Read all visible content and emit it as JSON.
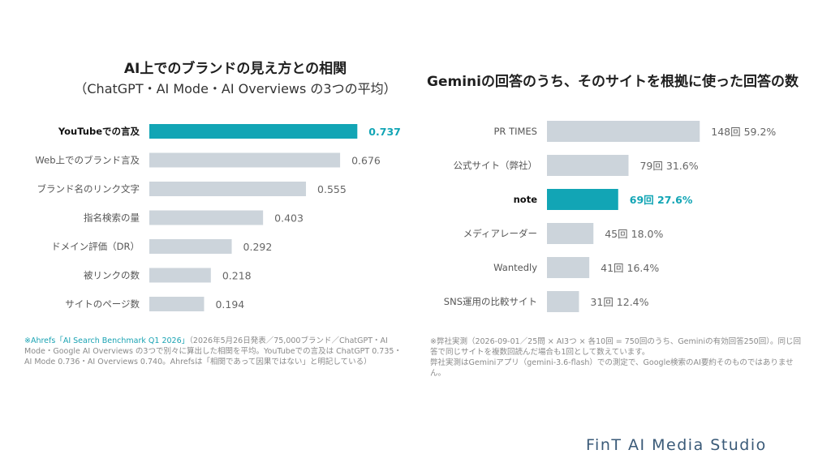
{
  "chart_data": [
    {
      "type": "bar",
      "orientation": "horizontal",
      "title": "AI上でのブランドの見え方との相関",
      "subtitle": "（ChatGPT・AI Mode・AI Overviews の3つの平均）",
      "categories": [
        "YouTubeでの言及",
        "Web上でのブランド言及",
        "ブランド名のリンク文字",
        "指名検索の量",
        "ドメイン評価（DR）",
        "被リンクの数",
        "サイトのページ数"
      ],
      "values": [
        0.737,
        0.676,
        0.555,
        0.403,
        0.292,
        0.218,
        0.194
      ],
      "value_labels": [
        "0.737",
        "0.676",
        "0.555",
        "0.403",
        "0.292",
        "0.218",
        "0.194"
      ],
      "highlight_index": 0,
      "xlim": [
        0,
        0.9
      ]
    },
    {
      "type": "bar",
      "orientation": "horizontal",
      "title": "Geminiの回答のうち、そのサイトを根拠に使った回答の数",
      "categories": [
        "PR TIMES",
        "公式サイト（弊社）",
        "note",
        "メディアレーダー",
        "Wantedly",
        "SNS運用の比較サイト"
      ],
      "values": [
        148,
        79,
        69,
        45,
        41,
        31
      ],
      "value_labels": [
        "148回  59.2%",
        "79回  31.6%",
        "69回  27.6%",
        "45回  18.0%",
        "41回  16.4%",
        "31回  12.4%"
      ],
      "highlight_index": 2,
      "xlim": [
        0,
        250
      ]
    }
  ],
  "colors": {
    "highlight": "#12a5b5",
    "bar": "#ccd4db",
    "label": "#555555",
    "value": "#666666"
  },
  "notes": {
    "left_source": "※Ahrefs「AI Search Benchmark Q1 2026」",
    "left_text": "（2026年5月26日発表／75,000ブランド／ChatGPT・AI Mode・Google AI Overviews の3つで別々に算出した相関を平均。YouTubeでの言及は ChatGPT 0.735・AI Mode 0.736・AI Overviews 0.740。Ahrefsは「相関であって因果ではない」と明記している）",
    "right_line1": "※弊社実測（2026-09-01／25問 × AI3つ × 各10回 = 750回のうち、Geminiの有効回答250回）。同じ回答で同じサイトを複数回読んだ場合も1回として数えています。",
    "right_line2": "弊社実測はGeminiアプリ（gemini-3.6-flash）での測定で、Google検索のAI要約そのものではありません。"
  },
  "brand": "FinT AI Media Studio"
}
